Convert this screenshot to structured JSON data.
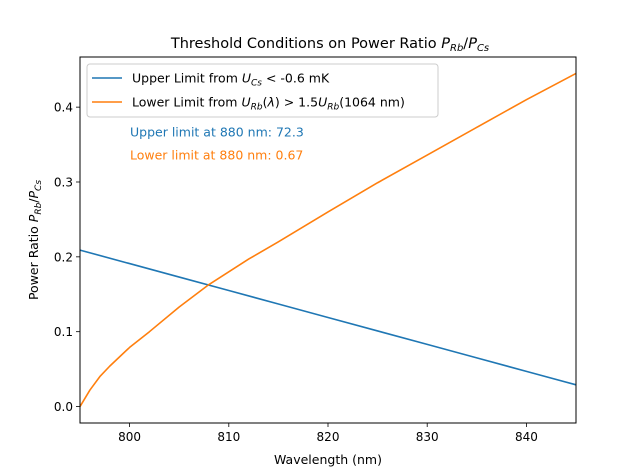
{
  "chart_data": {
    "type": "line",
    "title": "Threshold Conditions on Power Ratio P_Rb/P_Cs",
    "xlabel": "Wavelength (nm)",
    "ylabel": "Power Ratio P_Rb/P_Cs",
    "xlim": [
      795,
      845
    ],
    "ylim": [
      -0.022,
      0.467
    ],
    "xticks": [
      800,
      810,
      820,
      830,
      840
    ],
    "yticks": [
      0.0,
      0.1,
      0.2,
      0.3,
      0.4
    ],
    "xtick_labels": [
      "800",
      "810",
      "820",
      "830",
      "840"
    ],
    "ytick_labels": [
      "0.0",
      "0.1",
      "0.2",
      "0.3",
      "0.4"
    ],
    "grid": false,
    "legend_position": "upper-left",
    "series": [
      {
        "name": "Upper Limit from U_Cs < -0.6 mK",
        "color": "#1f77b4",
        "x": [
          795,
          800,
          805,
          810,
          815,
          820,
          825,
          830,
          835,
          840,
          845
        ],
        "y": [
          0.209,
          0.191,
          0.173,
          0.155,
          0.137,
          0.119,
          0.101,
          0.083,
          0.065,
          0.047,
          0.029
        ]
      },
      {
        "name": "Lower Limit from U_Rb(λ) > 1.5U_Rb(1064 nm)",
        "color": "#ff7f0e",
        "x": [
          795,
          795.5,
          796,
          797,
          798,
          800,
          802,
          805,
          808,
          810,
          812,
          815,
          820,
          825,
          830,
          835,
          840,
          845
        ],
        "y": [
          0.0,
          0.011,
          0.022,
          0.04,
          0.054,
          0.079,
          0.1,
          0.133,
          0.163,
          0.18,
          0.197,
          0.22,
          0.26,
          0.299,
          0.336,
          0.373,
          0.41,
          0.445
        ]
      }
    ],
    "annotations": [
      {
        "text": "Upper limit at 880 nm: 72.3",
        "color": "#1f77b4"
      },
      {
        "text": "Lower limit at 880 nm: 0.67",
        "color": "#ff7f0e"
      }
    ]
  }
}
